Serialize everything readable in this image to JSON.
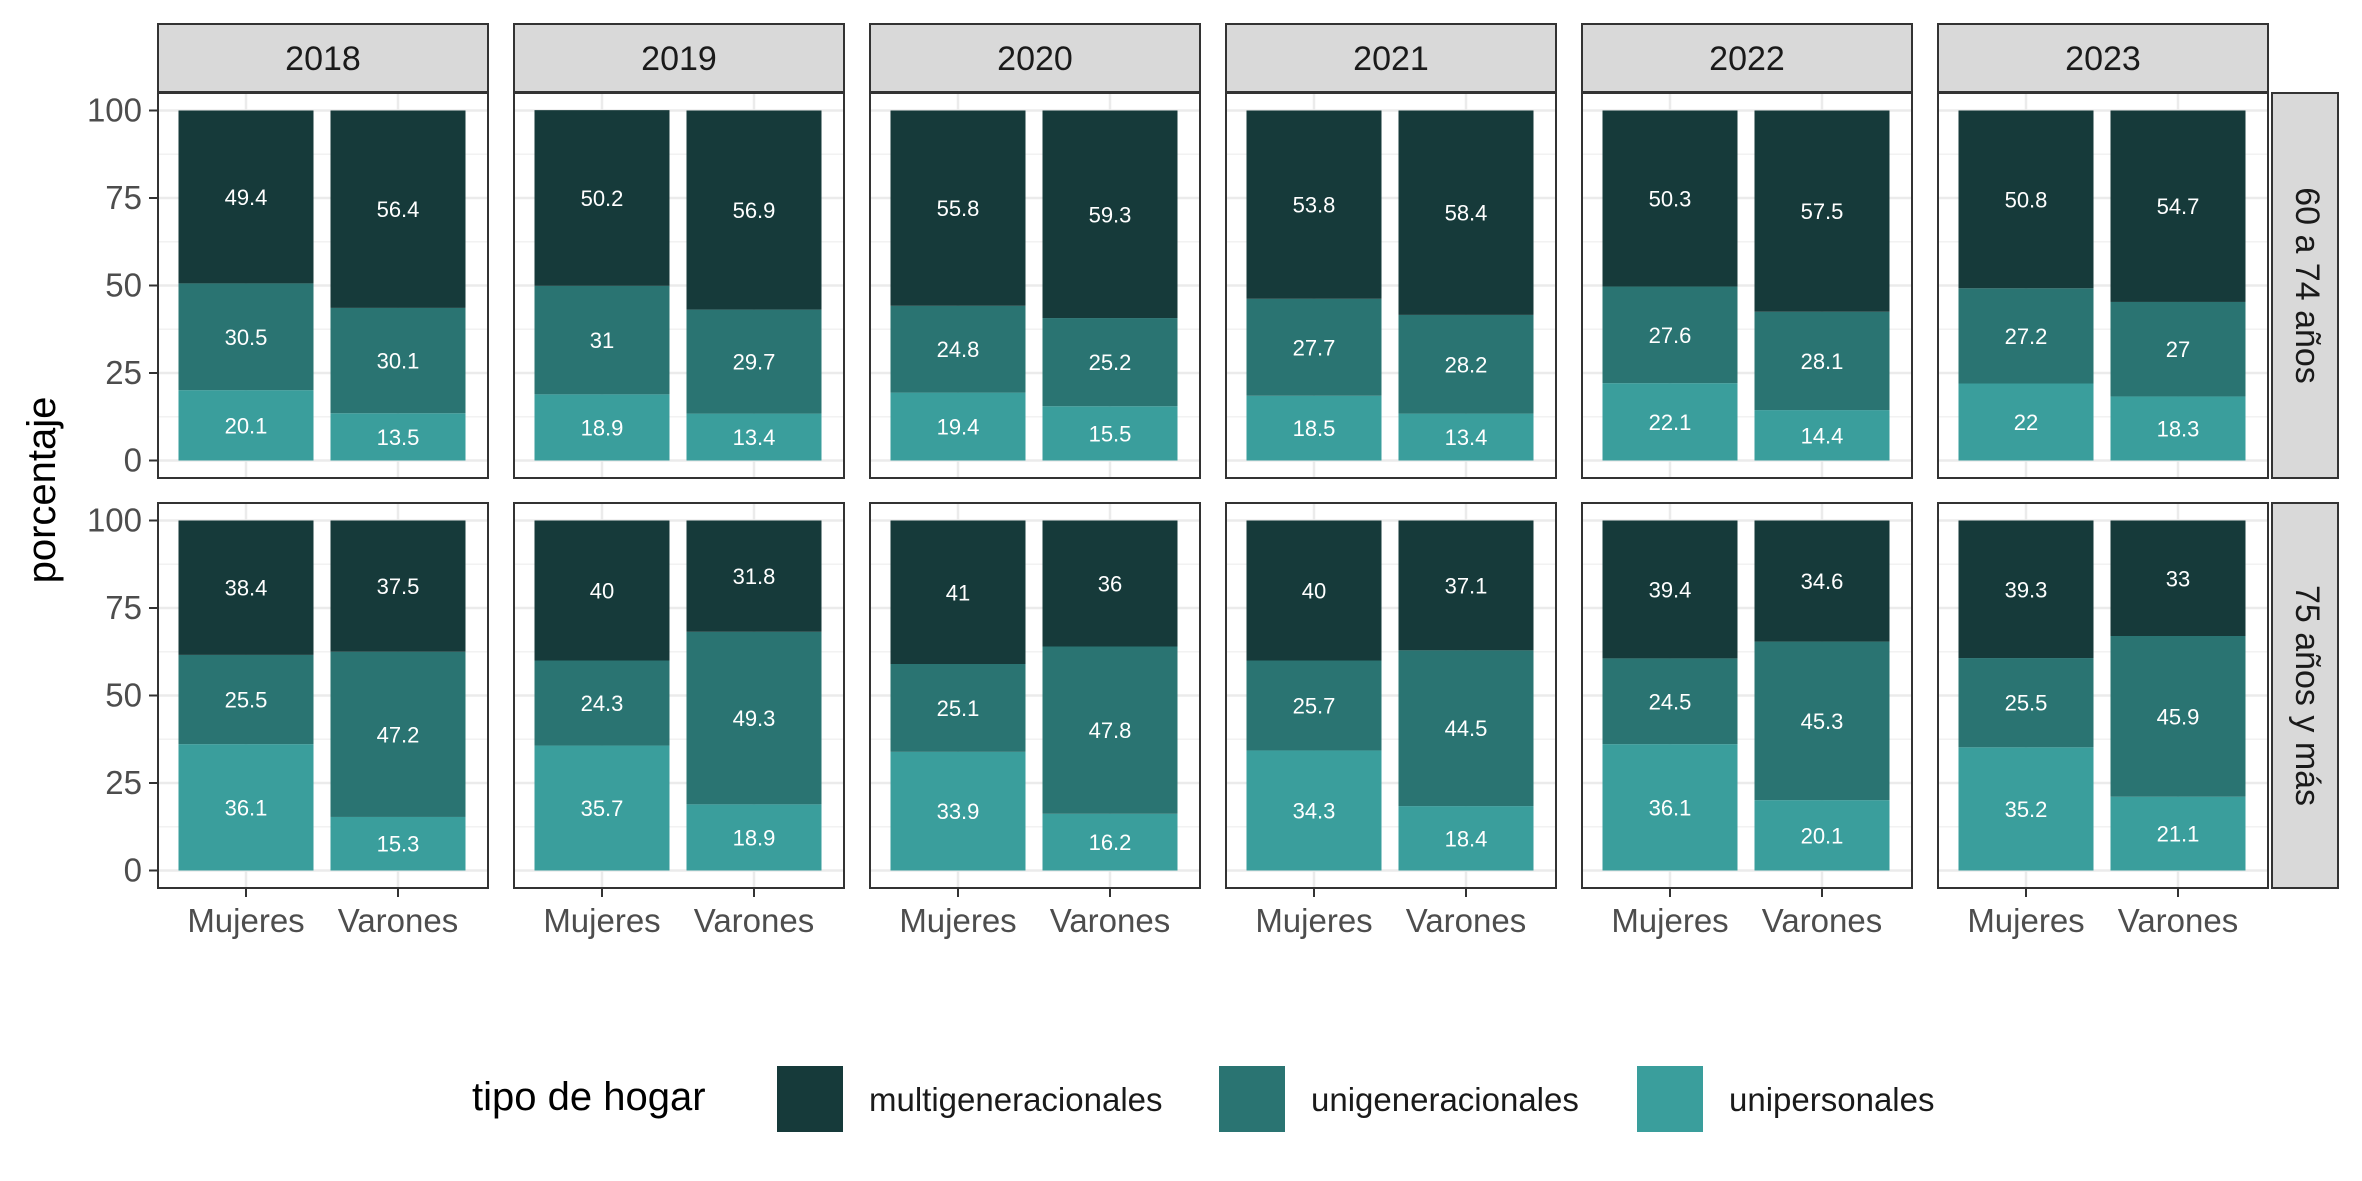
{
  "chart_data": {
    "type": "bar",
    "stacked": true,
    "ylabel": "porcentaje",
    "xlabel": "",
    "ylim": [
      0,
      100
    ],
    "yticks": [
      0,
      25,
      50,
      75,
      100
    ],
    "grid": true,
    "facet_columns": [
      "2018",
      "2019",
      "2020",
      "2021",
      "2022",
      "2023"
    ],
    "facet_rows": [
      "60 a 74 años",
      "75 años y más"
    ],
    "categories": [
      "Mujeres",
      "Varones"
    ],
    "legend": {
      "title": "tipo de hogar",
      "position": "bottom",
      "items": [
        {
          "name": "multigeneracionales",
          "color": "#163a3a"
        },
        {
          "name": "unigeneracionales",
          "color": "#2a7472"
        },
        {
          "name": "unipersonales",
          "color": "#3a9e9c"
        }
      ]
    },
    "series_names": [
      "unipersonales",
      "unigeneracionales",
      "multigeneracionales"
    ],
    "series_colors": {
      "unipersonales": "#3a9e9c",
      "unigeneracionales": "#2a7472",
      "multigeneracionales": "#163a3a"
    },
    "panels": [
      {
        "row": "60 a 74 años",
        "col": "2018",
        "bars": [
          {
            "category": "Mujeres",
            "unipersonales": 20.1,
            "unigeneracionales": 30.5,
            "multigeneracionales": 49.4
          },
          {
            "category": "Varones",
            "unipersonales": 13.5,
            "unigeneracionales": 30.1,
            "multigeneracionales": 56.4
          }
        ]
      },
      {
        "row": "60 a 74 años",
        "col": "2019",
        "bars": [
          {
            "category": "Mujeres",
            "unipersonales": 18.9,
            "unigeneracionales": 31,
            "multigeneracionales": 50.2
          },
          {
            "category": "Varones",
            "unipersonales": 13.4,
            "unigeneracionales": 29.7,
            "multigeneracionales": 56.9
          }
        ]
      },
      {
        "row": "60 a 74 años",
        "col": "2020",
        "bars": [
          {
            "category": "Mujeres",
            "unipersonales": 19.4,
            "unigeneracionales": 24.8,
            "multigeneracionales": 55.8
          },
          {
            "category": "Varones",
            "unipersonales": 15.5,
            "unigeneracionales": 25.2,
            "multigeneracionales": 59.3
          }
        ]
      },
      {
        "row": "60 a 74 años",
        "col": "2021",
        "bars": [
          {
            "category": "Mujeres",
            "unipersonales": 18.5,
            "unigeneracionales": 27.7,
            "multigeneracionales": 53.8
          },
          {
            "category": "Varones",
            "unipersonales": 13.4,
            "unigeneracionales": 28.2,
            "multigeneracionales": 58.4
          }
        ]
      },
      {
        "row": "60 a 74 años",
        "col": "2022",
        "bars": [
          {
            "category": "Mujeres",
            "unipersonales": 22.1,
            "unigeneracionales": 27.6,
            "multigeneracionales": 50.3
          },
          {
            "category": "Varones",
            "unipersonales": 14.4,
            "unigeneracionales": 28.1,
            "multigeneracionales": 57.5
          }
        ]
      },
      {
        "row": "60 a 74 años",
        "col": "2023",
        "bars": [
          {
            "category": "Mujeres",
            "unipersonales": 22,
            "unigeneracionales": 27.2,
            "multigeneracionales": 50.8
          },
          {
            "category": "Varones",
            "unipersonales": 18.3,
            "unigeneracionales": 27,
            "multigeneracionales": 54.7
          }
        ]
      },
      {
        "row": "75 años y más",
        "col": "2018",
        "bars": [
          {
            "category": "Mujeres",
            "unipersonales": 36.1,
            "unigeneracionales": 25.5,
            "multigeneracionales": 38.4
          },
          {
            "category": "Varones",
            "unipersonales": 15.3,
            "unigeneracionales": 47.2,
            "multigeneracionales": 37.5
          }
        ]
      },
      {
        "row": "75 años y más",
        "col": "2019",
        "bars": [
          {
            "category": "Mujeres",
            "unipersonales": 35.7,
            "unigeneracionales": 24.3,
            "multigeneracionales": 40
          },
          {
            "category": "Varones",
            "unipersonales": 18.9,
            "unigeneracionales": 49.3,
            "multigeneracionales": 31.8
          }
        ]
      },
      {
        "row": "75 años y más",
        "col": "2020",
        "bars": [
          {
            "category": "Mujeres",
            "unipersonales": 33.9,
            "unigeneracionales": 25.1,
            "multigeneracionales": 41
          },
          {
            "category": "Varones",
            "unipersonales": 16.2,
            "unigeneracionales": 47.8,
            "multigeneracionales": 36
          }
        ]
      },
      {
        "row": "75 años y más",
        "col": "2021",
        "bars": [
          {
            "category": "Mujeres",
            "unipersonales": 34.3,
            "unigeneracionales": 25.7,
            "multigeneracionales": 40
          },
          {
            "category": "Varones",
            "unipersonales": 18.4,
            "unigeneracionales": 44.5,
            "multigeneracionales": 37.1
          }
        ]
      },
      {
        "row": "75 años y más",
        "col": "2022",
        "bars": [
          {
            "category": "Mujeres",
            "unipersonales": 36.1,
            "unigeneracionales": 24.5,
            "multigeneracionales": 39.4
          },
          {
            "category": "Varones",
            "unipersonales": 20.1,
            "unigeneracionales": 45.3,
            "multigeneracionales": 34.6
          }
        ]
      },
      {
        "row": "75 años y más",
        "col": "2023",
        "bars": [
          {
            "category": "Mujeres",
            "unipersonales": 35.2,
            "unigeneracionales": 25.5,
            "multigeneracionales": 39.3
          },
          {
            "category": "Varones",
            "unipersonales": 21.1,
            "unigeneracionales": 45.9,
            "multigeneracionales": 33
          }
        ]
      }
    ]
  }
}
